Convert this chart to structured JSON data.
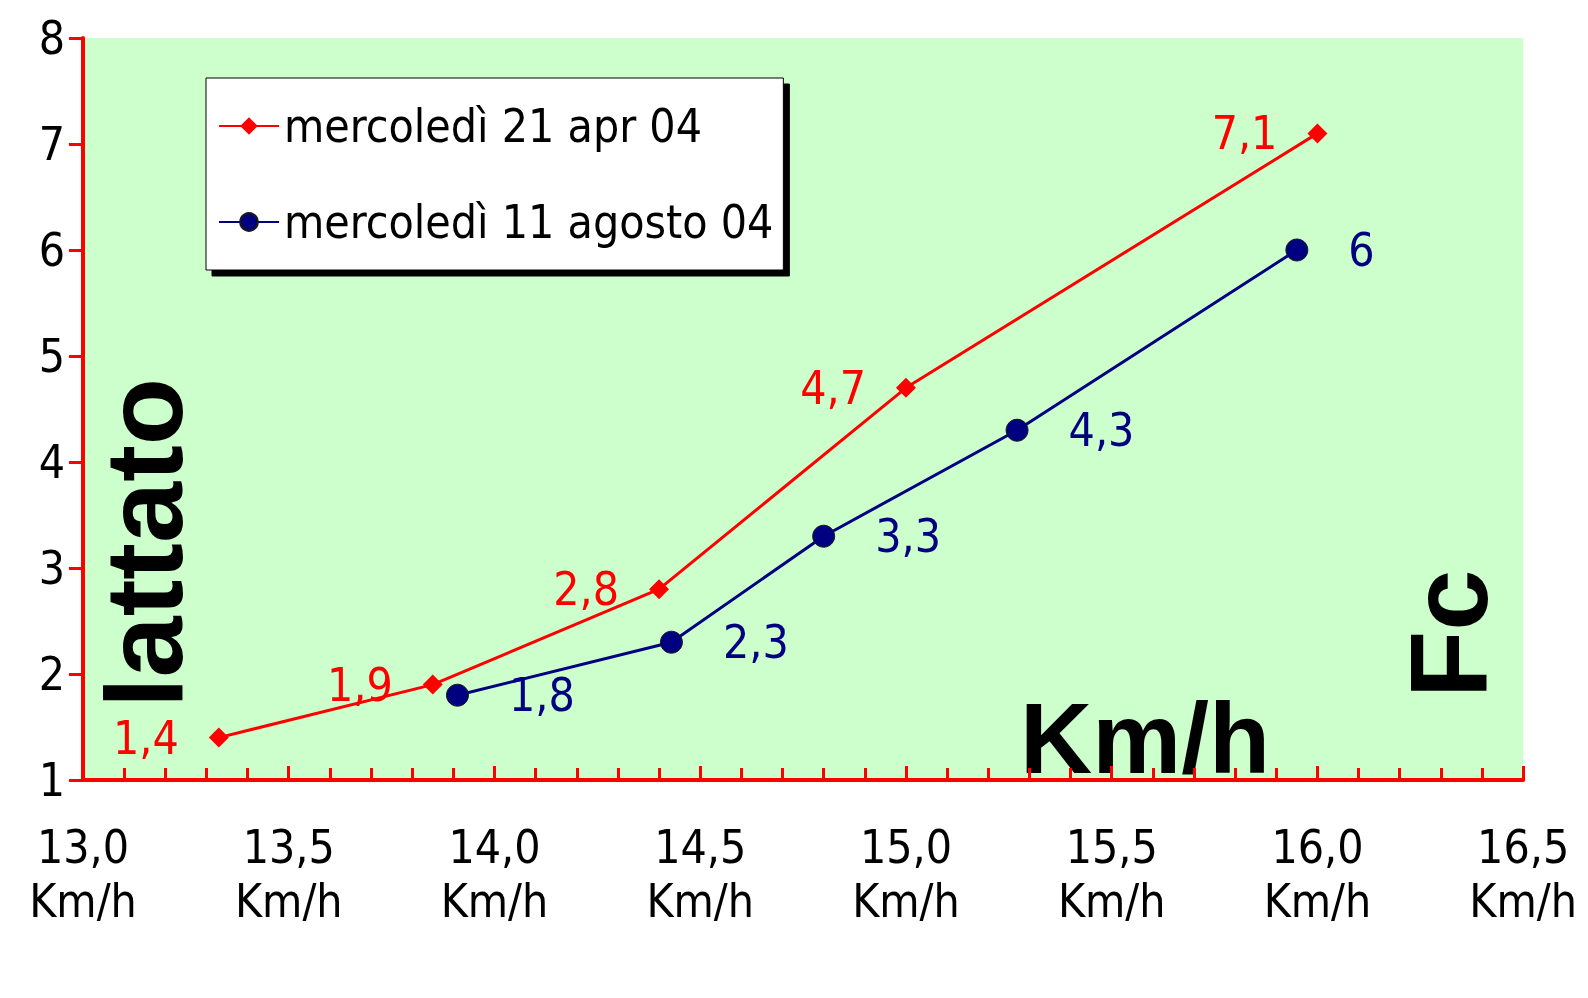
{
  "chart_data": {
    "type": "line",
    "xlabel": "Km/h",
    "ylabel": "lattato",
    "y2label": "Fc",
    "xlim": [
      13,
      16.5
    ],
    "xticks": [
      {
        "value": 13,
        "label": "13,0\nKm/h"
      },
      {
        "value": 13.5,
        "label": "13,5\nKm/h"
      },
      {
        "value": 14,
        "label": "14,0\nKm/h"
      },
      {
        "value": 14.5,
        "label": "14,5\nKm/h"
      },
      {
        "value": 15,
        "label": "15,0\nKm/h"
      },
      {
        "value": 15.5,
        "label": "15,5\nKm/h"
      },
      {
        "value": 16,
        "label": "16,0\nKm/h"
      },
      {
        "value": 16.5,
        "label": "16,5\nKm/h"
      }
    ],
    "ylim": [
      1,
      8
    ],
    "yticks": [
      1,
      2,
      3,
      4,
      5,
      6,
      7,
      8
    ],
    "grid": false,
    "legend": "top left",
    "series": [
      {
        "name": "mercoledì 21 apr 04",
        "color": "#ff0000",
        "marker": "diamond",
        "x": [
          13.33,
          13.85,
          14.4,
          15.0,
          16.0
        ],
        "values": [
          1.4,
          1.9,
          2.8,
          4.7,
          7.1
        ],
        "value_labels": [
          "1,4",
          "1,9",
          "2,8",
          "4,7",
          "7,1"
        ]
      },
      {
        "name": "mercoledì 11 agosto 04",
        "color": "#000080",
        "marker": "circle",
        "x": [
          13.91,
          14.43,
          14.8,
          15.27,
          15.95
        ],
        "values": [
          1.8,
          2.3,
          3.3,
          4.3,
          6
        ],
        "value_labels": [
          "1,8",
          "2,3",
          "3,3",
          "4,3",
          "6"
        ]
      }
    ]
  }
}
